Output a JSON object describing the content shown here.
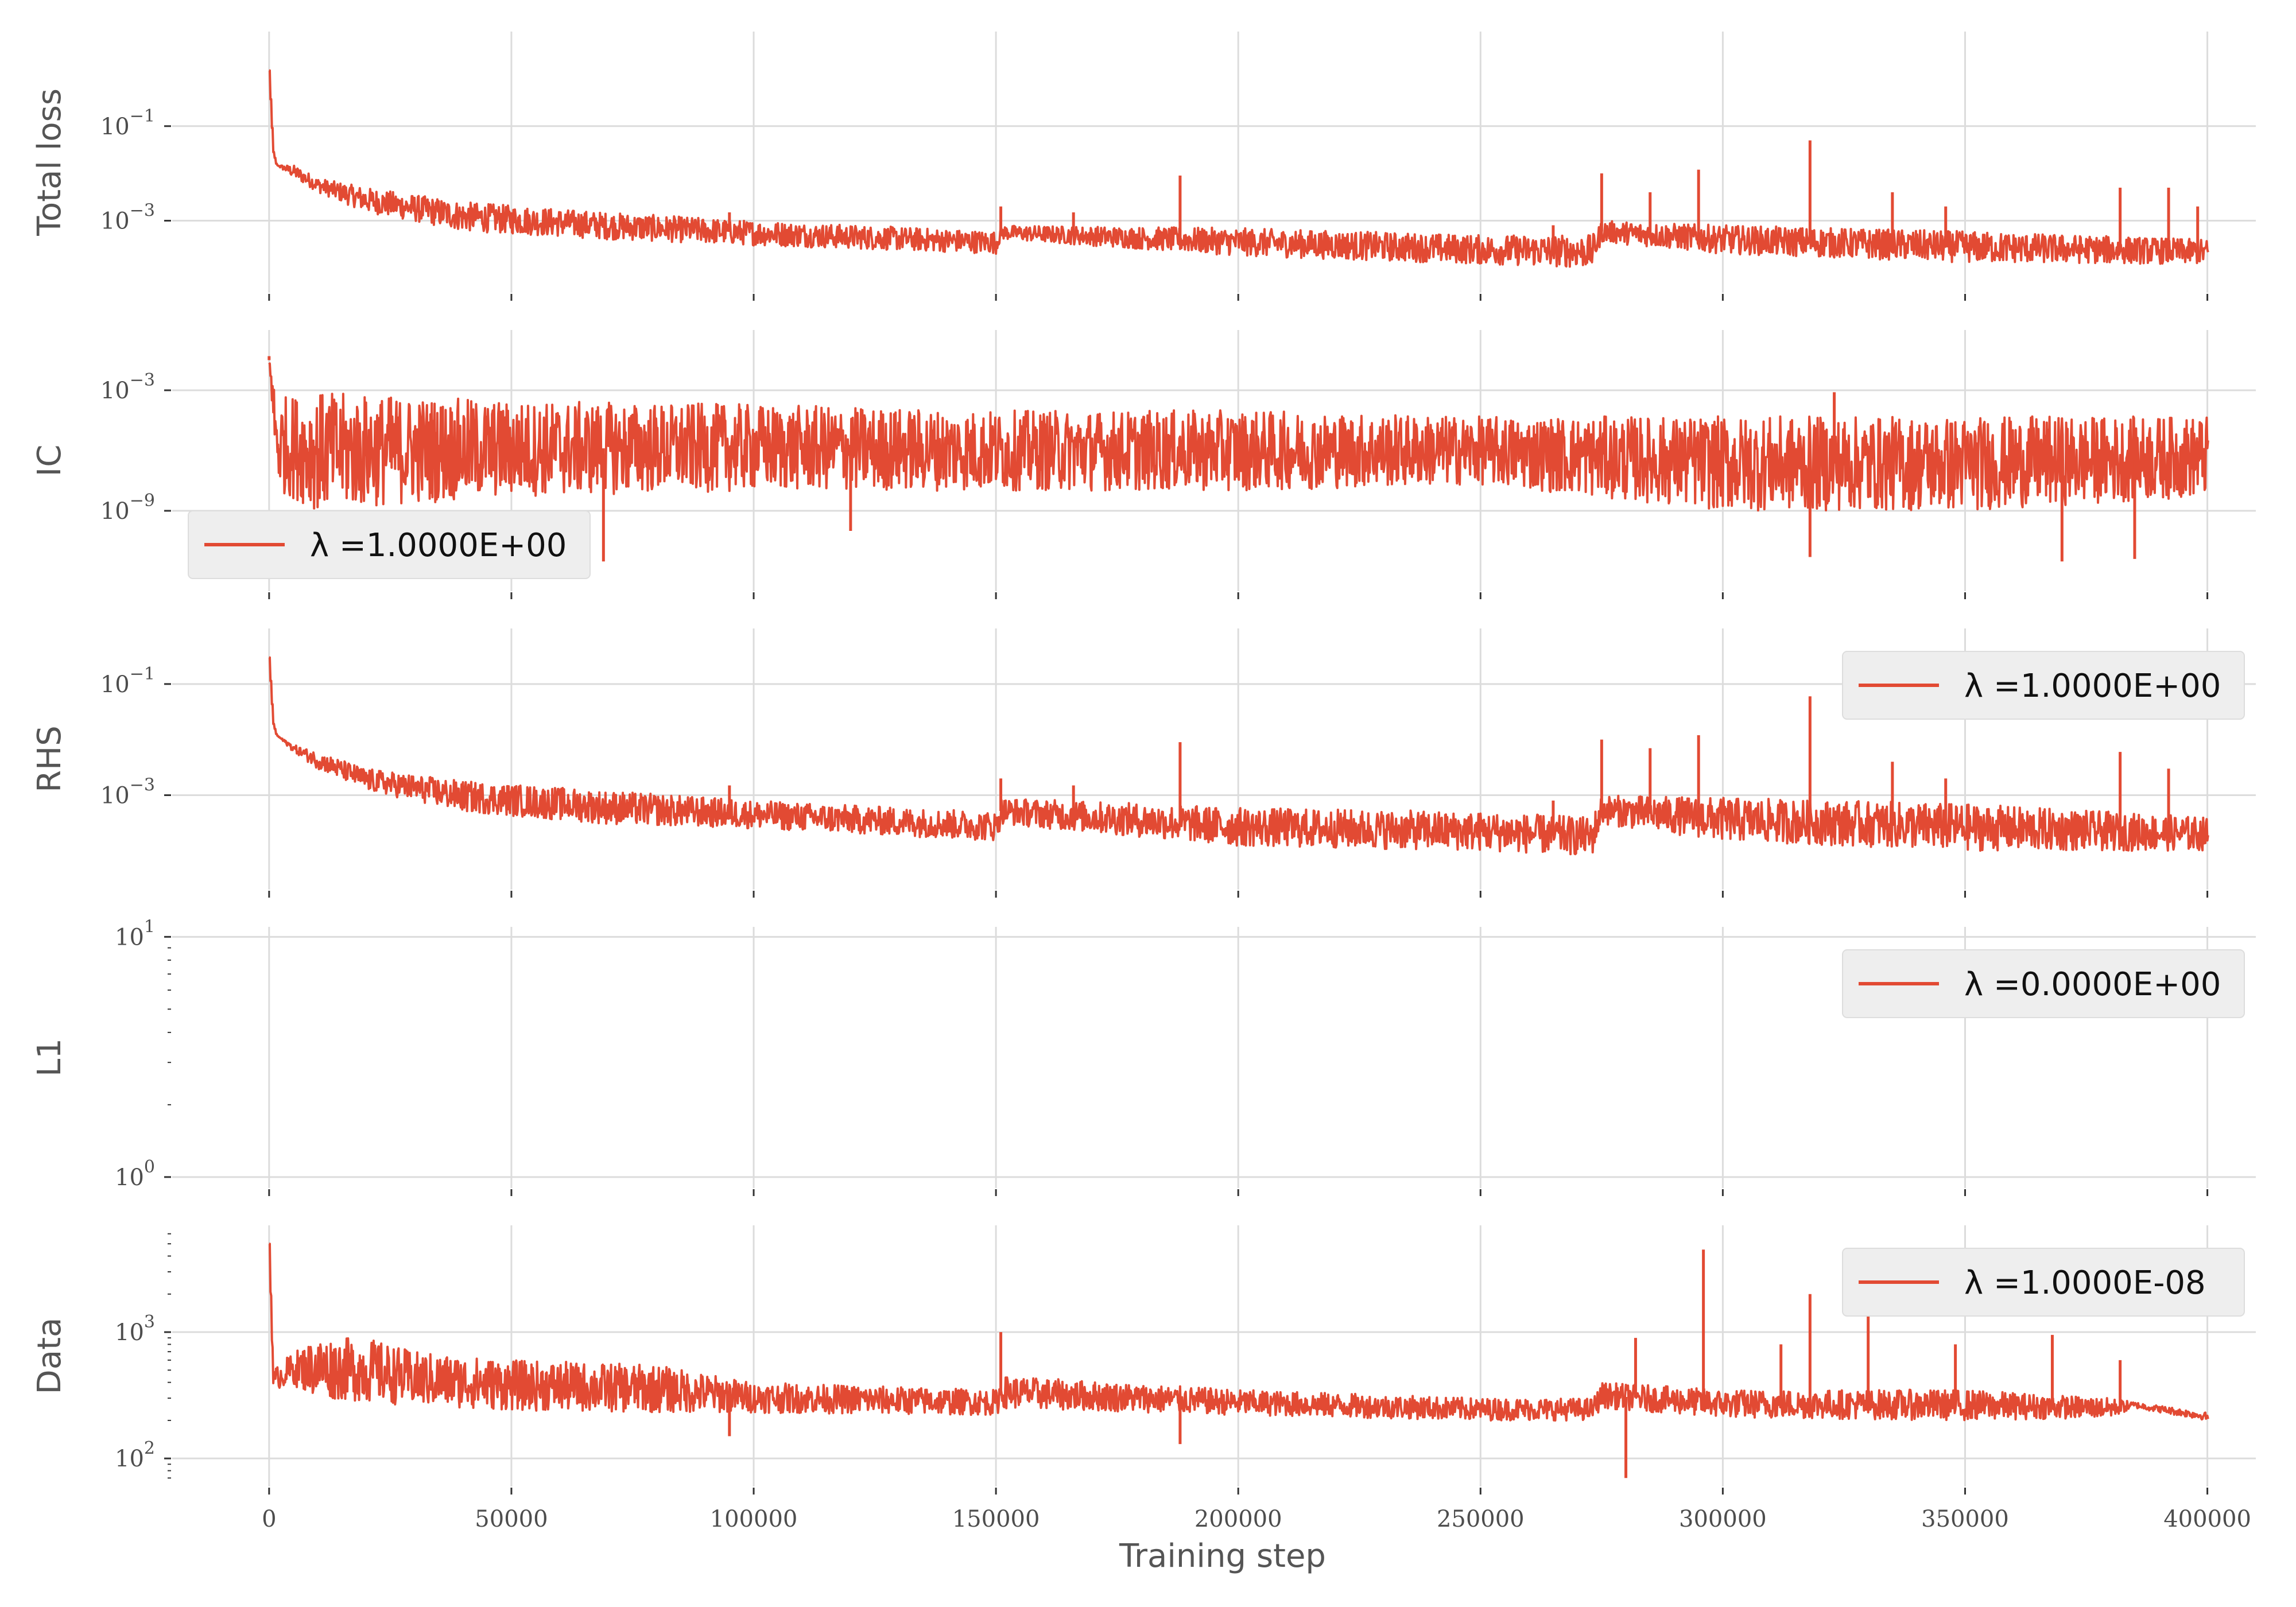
{
  "colors": {
    "series": "#e24a33",
    "grid": "#dcdcdc",
    "legend_bg": "#eeeeee"
  },
  "xaxis": {
    "label": "Training step",
    "ticks": [
      0,
      50000,
      100000,
      150000,
      200000,
      250000,
      300000,
      350000,
      400000
    ],
    "tick_labels": [
      "0",
      "50000",
      "100000",
      "150000",
      "200000",
      "250000",
      "300000",
      "350000",
      "400000"
    ],
    "range": [
      -20000,
      410000
    ]
  },
  "chart_data": [
    {
      "type": "line",
      "ylabel": "Total loss",
      "yscale": "log",
      "ylim": [
        3e-05,
        10
      ],
      "yticks": [
        {
          "value": 0.1,
          "base": "10",
          "exp": "−1"
        },
        {
          "value": 0.001,
          "base": "10",
          "exp": "−3"
        }
      ],
      "legend": null,
      "grid": true,
      "series": [
        {
          "x": [
            0,
            800,
            1500,
            5000,
            10000,
            20000,
            40000,
            70000,
            100000,
            150000,
            151000,
            200000,
            250000,
            273000,
            275000,
            300000,
            350000,
            400000
          ],
          "y_lower": [
            1.5,
            0.03,
            0.015,
            0.008,
            0.004,
            0.0015,
            0.0006,
            0.0004,
            0.0003,
            0.0002,
            0.0004,
            0.00018,
            0.00012,
            0.0001,
            0.00035,
            0.0002,
            0.00013,
            0.00012
          ],
          "y_upper": [
            1.5,
            0.03,
            0.015,
            0.015,
            0.008,
            0.005,
            0.0025,
            0.0015,
            0.001,
            0.0006,
            0.0008,
            0.0007,
            0.0005,
            0.0005,
            0.001,
            0.0008,
            0.0006,
            0.0004
          ],
          "spikes": [
            [
              95000,
              0.0015
            ],
            [
              151000,
              0.002
            ],
            [
              166000,
              0.0015
            ],
            [
              188000,
              0.009
            ],
            [
              265000,
              0.0008
            ],
            [
              275000,
              0.01
            ],
            [
              285000,
              0.004
            ],
            [
              295000,
              0.012
            ],
            [
              318000,
              0.05
            ],
            [
              335000,
              0.004
            ],
            [
              346000,
              0.002
            ],
            [
              382000,
              0.005
            ],
            [
              392000,
              0.005
            ],
            [
              398000,
              0.002
            ]
          ]
        }
      ]
    },
    {
      "type": "line",
      "ylabel": "IC",
      "yscale": "log",
      "ylim": [
        1e-13,
        1
      ],
      "yticks": [
        {
          "value": 0.001,
          "base": "10",
          "exp": "−3"
        },
        {
          "value": 1e-09,
          "base": "10",
          "exp": "−9"
        }
      ],
      "legend": {
        "text": "λ =1.0000E+00",
        "loc": "lower-left"
      },
      "grid": true,
      "series": [
        {
          "x": [
            0,
            1500,
            10000,
            50000,
            100000,
            150000,
            200000,
            250000,
            300000,
            350000,
            400000
          ],
          "y_lower": [
            0.1,
            1e-08,
            1e-09,
            5e-09,
            1e-08,
            1e-08,
            1e-08,
            2e-08,
            1e-09,
            1e-09,
            5e-09
          ],
          "y_upper": [
            0.01,
            0.0005,
            0.0008,
            0.0003,
            0.0002,
            0.0001,
            0.0001,
            5e-05,
            5e-05,
            5e-05,
            5e-05
          ],
          "spikes": [
            [
              0,
              0.05
            ],
            [
              69000,
              3e-12
            ],
            [
              120000,
              1e-10
            ],
            [
              318000,
              5e-12
            ],
            [
              323000,
              0.0008
            ],
            [
              370000,
              3e-12
            ],
            [
              385000,
              4e-12
            ]
          ]
        }
      ]
    },
    {
      "type": "line",
      "ylabel": "RHS",
      "yscale": "log",
      "ylim": [
        2e-05,
        1
      ],
      "yticks": [
        {
          "value": 0.1,
          "base": "10",
          "exp": "−1"
        },
        {
          "value": 0.001,
          "base": "10",
          "exp": "−3"
        }
      ],
      "legend": {
        "text": "λ =1.0000E+00",
        "loc": "upper-right"
      },
      "grid": true,
      "series": [
        {
          "x": [
            0,
            800,
            1500,
            5000,
            10000,
            20000,
            40000,
            70000,
            100000,
            150000,
            151000,
            200000,
            250000,
            273000,
            275000,
            300000,
            350000,
            400000
          ],
          "y_lower": [
            0.3,
            0.02,
            0.012,
            0.006,
            0.003,
            0.0012,
            0.0005,
            0.0003,
            0.00025,
            0.00015,
            0.0003,
            0.00012,
            0.0001,
            8e-05,
            0.0003,
            0.00015,
            0.0001,
            0.0001
          ],
          "y_upper": [
            0.3,
            0.02,
            0.012,
            0.008,
            0.006,
            0.003,
            0.0018,
            0.0012,
            0.0008,
            0.0005,
            0.0009,
            0.0006,
            0.0005,
            0.0004,
            0.001,
            0.0009,
            0.0007,
            0.0004
          ],
          "spikes": [
            [
              95000,
              0.0015
            ],
            [
              151000,
              0.002
            ],
            [
              166000,
              0.0015
            ],
            [
              188000,
              0.009
            ],
            [
              265000,
              0.0008
            ],
            [
              275000,
              0.01
            ],
            [
              285000,
              0.007
            ],
            [
              295000,
              0.012
            ],
            [
              318000,
              0.06
            ],
            [
              335000,
              0.004
            ],
            [
              346000,
              0.002
            ],
            [
              382000,
              0.006
            ],
            [
              392000,
              0.003
            ]
          ]
        }
      ]
    },
    {
      "type": "line",
      "ylabel": "L1",
      "yscale": "log",
      "ylim": [
        0.9,
        11
      ],
      "yticks": [
        {
          "value": 10,
          "base": "10",
          "exp": "1"
        },
        {
          "value": 1,
          "base": "10",
          "exp": "0"
        }
      ],
      "legend": {
        "text": "λ =0.0000E+00",
        "loc": "upper-right"
      },
      "grid": true,
      "series": []
    },
    {
      "type": "line",
      "ylabel": "Data",
      "yscale": "log",
      "ylim": [
        60,
        7000
      ],
      "yticks": [
        {
          "value": 1000,
          "base": "10",
          "exp": "3"
        },
        {
          "value": 100,
          "base": "10",
          "exp": "2"
        }
      ],
      "legend": {
        "text": "λ =1.0000E-08",
        "loc": "upper-right"
      },
      "grid": true,
      "series": [
        {
          "x": [
            0,
            800,
            5000,
            10000,
            20000,
            30000,
            50000,
            80000,
            100000,
            150000,
            151000,
            200000,
            250000,
            273000,
            275000,
            300000,
            350000,
            380000,
            385000,
            400000
          ],
          "y_lower": [
            5000,
            350,
            380,
            300,
            280,
            260,
            240,
            230,
            230,
            220,
            250,
            220,
            200,
            200,
            250,
            210,
            200,
            210,
            250,
            200
          ],
          "y_upper": [
            5000,
            500,
            700,
            900,
            900,
            700,
            600,
            550,
            400,
            350,
            450,
            350,
            300,
            300,
            400,
            350,
            350,
            300,
            280,
            230
          ],
          "spikes": [
            [
              95000,
              150
            ],
            [
              151000,
              1000
            ],
            [
              188000,
              130
            ],
            [
              280000,
              70
            ],
            [
              282000,
              900
            ],
            [
              296000,
              4500
            ],
            [
              312000,
              800
            ],
            [
              318000,
              2000
            ],
            [
              330000,
              1500
            ],
            [
              348000,
              800
            ],
            [
              368000,
              950
            ],
            [
              382000,
              600
            ]
          ]
        }
      ]
    }
  ]
}
